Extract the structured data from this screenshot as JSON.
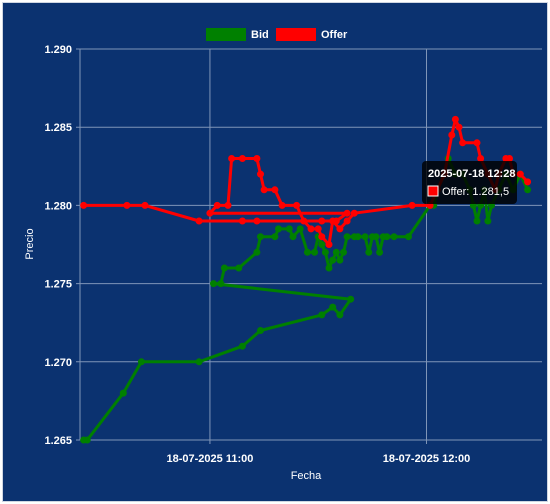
{
  "chart_data": {
    "type": "line",
    "xlabel": "Fecha",
    "ylabel": "Precio",
    "x_ticks": [
      {
        "label": "18-07-2025 11:00",
        "time": "11:00"
      },
      {
        "label": "18-07-2025 12:00",
        "time": "12:00"
      }
    ],
    "xlim": [
      "10:24",
      "12:32"
    ],
    "ylim": [
      1.265,
      1.29
    ],
    "y_ticks": [
      {
        "value": 1.265,
        "label": "1.265"
      },
      {
        "value": 1.27,
        "label": "1.270"
      },
      {
        "value": 1.275,
        "label": "1.275"
      },
      {
        "value": 1.28,
        "label": "1.280"
      },
      {
        "value": 1.285,
        "label": "1.285"
      },
      {
        "value": 1.29,
        "label": "1.290"
      }
    ],
    "grid": true,
    "legend_position": "top-center",
    "series": [
      {
        "name": "Bid",
        "color": "#008000",
        "points": [
          [
            "10:25",
            1.265
          ],
          [
            "10:26",
            1.265
          ],
          [
            "10:36",
            1.268
          ],
          [
            "10:41",
            1.27
          ],
          [
            "10:57",
            1.27
          ],
          [
            "10:69",
            1.271
          ],
          [
            "10:74",
            1.272
          ],
          [
            "10:91",
            1.273
          ],
          [
            "10:94",
            1.2735
          ],
          [
            "10:96",
            1.273
          ],
          [
            "10:99",
            1.274
          ],
          [
            "11:01",
            1.275
          ],
          [
            "11:03",
            1.275
          ],
          [
            "11:04",
            1.276
          ],
          [
            "11:08",
            1.276
          ],
          [
            "11:13",
            1.277
          ],
          [
            "11:14",
            1.278
          ],
          [
            "11:18",
            1.278
          ],
          [
            "11:19",
            1.2785
          ],
          [
            "11:22",
            1.2785
          ],
          [
            "11:23",
            1.278
          ],
          [
            "11:25",
            1.2785
          ],
          [
            "11:27",
            1.277
          ],
          [
            "11:29",
            1.277
          ],
          [
            "11:30",
            1.278
          ],
          [
            "11:31",
            1.2775
          ],
          [
            "11:32",
            1.277
          ],
          [
            "11:33",
            1.276
          ],
          [
            "11:34",
            1.2765
          ],
          [
            "11:35",
            1.277
          ],
          [
            "11:36",
            1.2765
          ],
          [
            "11:37",
            1.277
          ],
          [
            "11:38",
            1.278
          ],
          [
            "11:40",
            1.278
          ],
          [
            "11:41",
            1.278
          ],
          [
            "11:43",
            1.278
          ],
          [
            "11:44",
            1.277
          ],
          [
            "11:45",
            1.278
          ],
          [
            "11:46",
            1.278
          ],
          [
            "11:47",
            1.277
          ],
          [
            "11:48",
            1.278
          ],
          [
            "11:49",
            1.278
          ],
          [
            "11:51",
            1.278
          ],
          [
            "11:55",
            1.278
          ],
          [
            "12:01",
            1.28
          ],
          [
            "12:02",
            1.28
          ],
          [
            "12:03",
            1.281
          ],
          [
            "12:05",
            1.282
          ],
          [
            "12:06",
            1.283
          ],
          [
            "12:08",
            1.282
          ],
          [
            "12:10",
            1.282
          ],
          [
            "12:12",
            1.281
          ],
          [
            "12:13",
            1.28
          ],
          [
            "12:14",
            1.279
          ],
          [
            "12:15",
            1.28
          ],
          [
            "12:16",
            1.281
          ],
          [
            "12:17",
            1.279
          ],
          [
            "12:18",
            1.28
          ],
          [
            "12:20",
            1.281
          ],
          [
            "12:22",
            1.282
          ],
          [
            "12:24",
            1.281
          ],
          [
            "12:26",
            1.282
          ],
          [
            "12:28",
            1.281
          ]
        ]
      },
      {
        "name": "Offer",
        "color": "#ff0000",
        "points": [
          [
            "10:25",
            1.28
          ],
          [
            "10:37",
            1.28
          ],
          [
            "10:42",
            1.28
          ],
          [
            "10:57",
            1.279
          ],
          [
            "10:69",
            1.279
          ],
          [
            "10:73",
            1.279
          ],
          [
            "10:91",
            1.279
          ],
          [
            "10:95",
            1.279
          ],
          [
            "10:98",
            1.2795
          ],
          [
            "11:00",
            1.2795
          ],
          [
            "11:02",
            1.28
          ],
          [
            "11:05",
            1.28
          ],
          [
            "11:06",
            1.283
          ],
          [
            "11:09",
            1.283
          ],
          [
            "11:13",
            1.283
          ],
          [
            "11:14",
            1.282
          ],
          [
            "11:15",
            1.281
          ],
          [
            "11:18",
            1.281
          ],
          [
            "11:20",
            1.28
          ],
          [
            "11:24",
            1.28
          ],
          [
            "11:26",
            1.279
          ],
          [
            "11:28",
            1.2785
          ],
          [
            "11:30",
            1.2785
          ],
          [
            "11:31",
            1.278
          ],
          [
            "11:33",
            1.2775
          ],
          [
            "11:34",
            1.279
          ],
          [
            "11:36",
            1.2785
          ],
          [
            "11:38",
            1.279
          ],
          [
            "11:40",
            1.2795
          ],
          [
            "11:56",
            1.28
          ],
          [
            "12:01",
            1.28
          ],
          [
            "12:03",
            1.281
          ],
          [
            "12:05",
            1.282
          ],
          [
            "12:07",
            1.2845
          ],
          [
            "12:08",
            1.2855
          ],
          [
            "12:09",
            1.285
          ],
          [
            "12:10",
            1.284
          ],
          [
            "12:14",
            1.284
          ],
          [
            "12:15",
            1.283
          ],
          [
            "12:17",
            1.282
          ],
          [
            "12:19",
            1.281
          ],
          [
            "12:20",
            1.282
          ],
          [
            "12:22",
            1.283
          ],
          [
            "12:23",
            1.283
          ],
          [
            "12:24",
            1.282
          ],
          [
            "12:26",
            1.282
          ],
          [
            "12:28",
            1.2815
          ]
        ]
      }
    ],
    "tooltip": {
      "title": "2025-07-18 12:28",
      "series": "Offer",
      "text": "Offer: 1.281,5",
      "color": "#ff0000"
    }
  },
  "colors": {
    "background": "#0b3270",
    "grid": "#7f95b8",
    "text": "#ffffff"
  }
}
